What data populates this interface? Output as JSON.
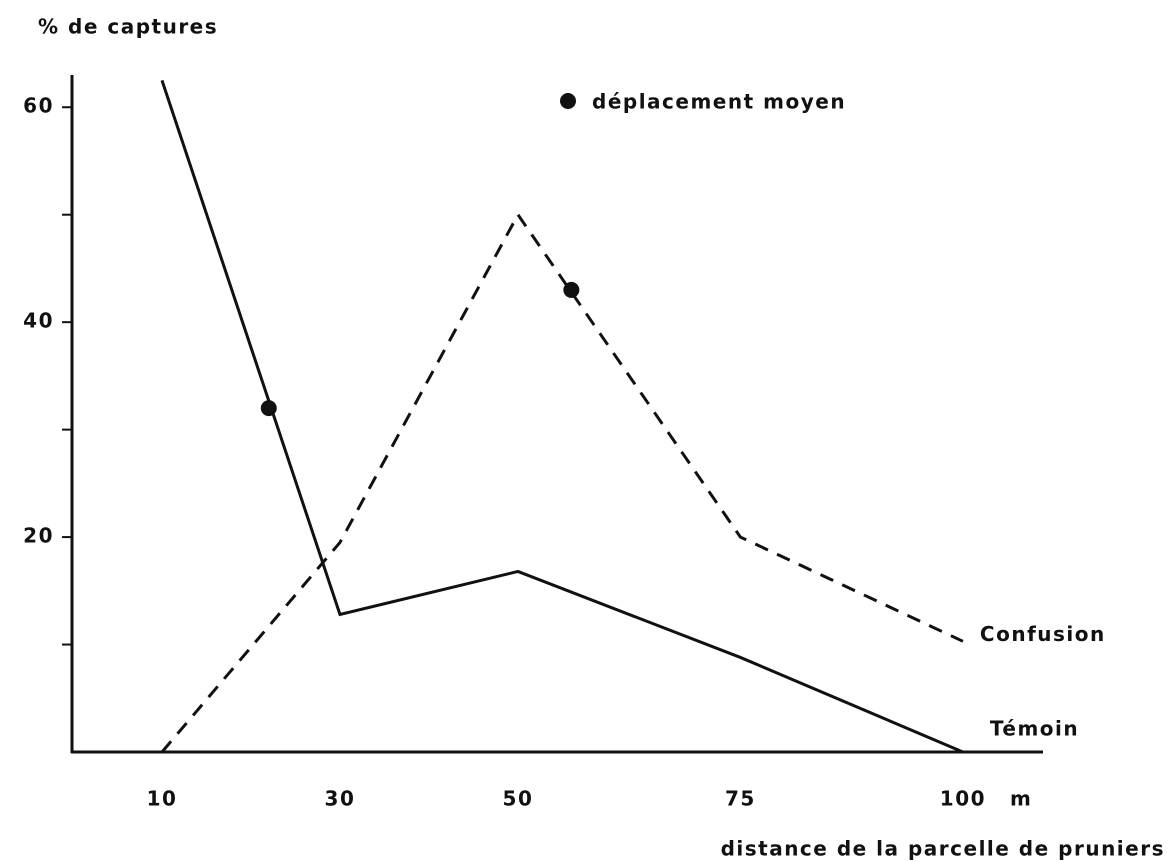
{
  "chart_data": {
    "type": "line",
    "y_label": "% de captures",
    "x_label": "distance de la parcelle de pruniers",
    "x_unit": "m",
    "xlim": [
      0,
      109
    ],
    "ylim": [
      0,
      63
    ],
    "xticks": [
      10,
      30,
      50,
      75,
      100
    ],
    "yticks": [
      20,
      40,
      60
    ],
    "minor_yticks": [
      10,
      30,
      50
    ],
    "x": [
      10,
      30,
      50,
      75,
      100
    ],
    "series": [
      {
        "name": "Témoin",
        "color": "#111111",
        "style": "solid",
        "values": [
          62.5,
          12.8,
          16.8,
          8.8,
          0
        ]
      },
      {
        "name": "Confusion",
        "color": "#111111",
        "style": "dashed",
        "values": [
          0,
          19.5,
          50,
          20,
          10.3
        ]
      }
    ],
    "markers": {
      "name": "déplacement moyen",
      "color": "#111111",
      "x": [
        22,
        56
      ],
      "values": [
        32,
        43
      ]
    }
  }
}
